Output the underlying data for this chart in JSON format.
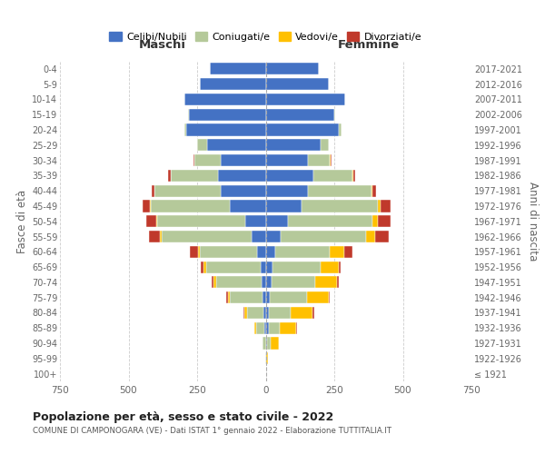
{
  "age_groups": [
    "100+",
    "95-99",
    "90-94",
    "85-89",
    "80-84",
    "75-79",
    "70-74",
    "65-69",
    "60-64",
    "55-59",
    "50-54",
    "45-49",
    "40-44",
    "35-39",
    "30-34",
    "25-29",
    "20-24",
    "15-19",
    "10-14",
    "5-9",
    "0-4"
  ],
  "birth_years": [
    "≤ 1921",
    "1922-1926",
    "1927-1931",
    "1932-1936",
    "1937-1941",
    "1942-1946",
    "1947-1951",
    "1952-1956",
    "1957-1961",
    "1962-1966",
    "1967-1971",
    "1972-1976",
    "1977-1981",
    "1982-1986",
    "1987-1991",
    "1992-1996",
    "1997-2001",
    "2002-2006",
    "2007-2011",
    "2012-2016",
    "2017-2021"
  ],
  "males": {
    "celibe": [
      0,
      0,
      0,
      4,
      8,
      10,
      14,
      18,
      30,
      50,
      75,
      130,
      165,
      175,
      165,
      215,
      290,
      280,
      295,
      240,
      205
    ],
    "coniugato": [
      0,
      2,
      10,
      30,
      60,
      120,
      165,
      200,
      210,
      330,
      320,
      290,
      240,
      170,
      95,
      35,
      8,
      2,
      0,
      0,
      0
    ],
    "vedovo": [
      0,
      0,
      2,
      6,
      10,
      8,
      10,
      10,
      8,
      6,
      5,
      3,
      2,
      2,
      1,
      0,
      0,
      0,
      0,
      0,
      0
    ],
    "divorziato": [
      0,
      0,
      0,
      0,
      3,
      5,
      8,
      8,
      30,
      40,
      35,
      25,
      10,
      10,
      3,
      0,
      0,
      0,
      0,
      0,
      0
    ]
  },
  "females": {
    "nubile": [
      0,
      0,
      4,
      10,
      12,
      15,
      20,
      25,
      35,
      55,
      80,
      130,
      155,
      175,
      155,
      200,
      265,
      250,
      290,
      230,
      195
    ],
    "coniugata": [
      0,
      3,
      15,
      40,
      80,
      135,
      160,
      175,
      200,
      310,
      310,
      280,
      230,
      140,
      80,
      30,
      10,
      3,
      0,
      0,
      0
    ],
    "vedova": [
      2,
      5,
      30,
      60,
      80,
      80,
      80,
      65,
      50,
      35,
      20,
      10,
      5,
      3,
      2,
      0,
      0,
      0,
      0,
      0,
      0
    ],
    "divorziata": [
      0,
      0,
      0,
      3,
      5,
      5,
      8,
      8,
      30,
      50,
      45,
      35,
      12,
      8,
      2,
      0,
      0,
      0,
      0,
      0,
      0
    ]
  },
  "colors": {
    "celibe": "#4472c4",
    "coniugato": "#b5c99a",
    "vedovo": "#ffc000",
    "divorziato": "#c0392b"
  },
  "title": "Popolazione per età, sesso e stato civile - 2022",
  "subtitle": "COMUNE DI CAMPONOGARA (VE) - Dati ISTAT 1° gennaio 2022 - Elaborazione TUTTITALIA.IT",
  "header_left": "Maschi",
  "header_right": "Femmine",
  "ylabel_left": "Fasce di età",
  "ylabel_right": "Anni di nascita",
  "xlim": 750,
  "bg_color": "#ffffff",
  "grid_color": "#cccccc",
  "legend_labels": [
    "Celibi/Nubili",
    "Coniugati/e",
    "Vedovi/e",
    "Divorziati/e"
  ]
}
